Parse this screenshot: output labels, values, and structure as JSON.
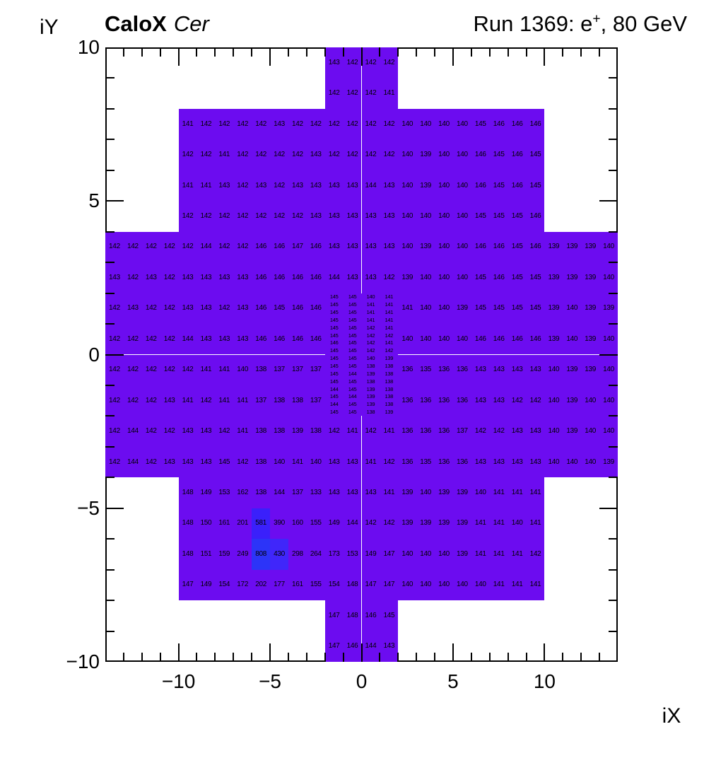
{
  "header": {
    "title_bold": "CaloX",
    "title_italic": "Cer",
    "run_pre": "Run 1369: e",
    "run_sup": "+",
    "run_post": ", 80 GeV"
  },
  "axes": {
    "x_title": "iX",
    "y_title": "iY",
    "x_ticks": [
      {
        "value": -10,
        "label": "−10"
      },
      {
        "value": -5,
        "label": "−5"
      },
      {
        "value": 0,
        "label": "0"
      },
      {
        "value": 5,
        "label": "5"
      },
      {
        "value": 10,
        "label": "10"
      }
    ],
    "y_ticks": [
      {
        "value": 10,
        "label": "10"
      },
      {
        "value": 5,
        "label": "5"
      },
      {
        "value": 0,
        "label": "0"
      },
      {
        "value": -5,
        "label": "−5"
      },
      {
        "value": -10,
        "label": "−10"
      }
    ]
  },
  "palette": {
    "base": "#6C0CF0",
    "stops": [
      {
        "min": 400,
        "color": "#4026FA"
      },
      {
        "min": 500,
        "color": "#3A20FB"
      },
      {
        "min": 700,
        "color": "#2C34F8"
      }
    ]
  },
  "chart_data": {
    "type": "heatmap",
    "xlabel": "iX",
    "ylabel": "iY",
    "xlim": [
      -14,
      14
    ],
    "ylim": [
      -10,
      10
    ],
    "grid": false,
    "rows": [
      {
        "iy": 9.5,
        "segments": [
          {
            "ix": -2,
            "values": [
              143,
              142,
              142,
              142
            ]
          }
        ]
      },
      {
        "iy": 8.5,
        "segments": [
          {
            "ix": -2,
            "values": [
              142,
              142,
              142,
              141
            ]
          }
        ]
      },
      {
        "iy": 7.5,
        "segments": [
          {
            "ix": -10,
            "values": [
              141,
              142,
              142,
              142,
              142,
              143,
              142,
              142,
              142,
              142,
              142,
              142,
              140,
              140,
              140,
              140,
              145,
              146,
              146,
              146
            ]
          }
        ]
      },
      {
        "iy": 6.5,
        "segments": [
          {
            "ix": -10,
            "values": [
              142,
              142,
              141,
              142,
              142,
              142,
              142,
              143,
              142,
              142,
              142,
              142,
              140,
              139,
              140,
              140,
              146,
              145,
              146,
              145
            ]
          }
        ]
      },
      {
        "iy": 5.5,
        "segments": [
          {
            "ix": -10,
            "values": [
              141,
              141,
              143,
              142,
              143,
              142,
              143,
              143,
              143,
              143,
              144,
              143,
              140,
              139,
              140,
              140,
              146,
              145,
              146,
              145
            ]
          }
        ]
      },
      {
        "iy": 4.5,
        "segments": [
          {
            "ix": -10,
            "values": [
              142,
              142,
              142,
              142,
              142,
              142,
              142,
              143,
              143,
              143,
              143,
              143,
              140,
              140,
              140,
              140,
              145,
              145,
              145,
              146
            ]
          }
        ]
      },
      {
        "iy": 3.5,
        "segments": [
          {
            "ix": -14,
            "values": [
              142,
              142,
              142,
              142,
              142,
              144,
              142,
              142,
              146,
              146,
              147,
              146,
              143,
              143,
              143,
              143,
              140,
              139,
              140,
              140,
              146,
              146,
              145,
              146,
              139,
              139,
              139,
              140
            ]
          }
        ]
      },
      {
        "iy": 2.5,
        "segments": [
          {
            "ix": -14,
            "values": [
              143,
              142,
              143,
              142,
              143,
              143,
              143,
              143,
              146,
              146,
              146,
              146,
              144,
              143,
              143,
              142,
              139,
              140,
              140,
              140,
              145,
              146,
              145,
              145,
              139,
              139,
              139,
              140
            ]
          }
        ]
      },
      {
        "iy": 1.5,
        "segments": [
          {
            "ix": -14,
            "values": [
              142,
              143,
              142,
              142,
              143,
              143,
              142,
              143,
              146,
              145,
              146,
              146
            ]
          },
          {
            "ix": 2,
            "values": [
              141,
              140,
              140,
              139,
              145,
              145,
              145,
              145,
              139,
              140,
              139,
              139
            ]
          }
        ]
      },
      {
        "iy": 0.5,
        "segments": [
          {
            "ix": -14,
            "values": [
              142,
              142,
              142,
              142,
              144,
              143,
              143,
              143,
              146,
              146,
              146,
              146
            ]
          },
          {
            "ix": 2,
            "values": [
              140,
              140,
              140,
              140,
              146,
              146,
              146,
              146,
              139,
              140,
              139,
              140
            ]
          }
        ]
      },
      {
        "iy": -0.5,
        "segments": [
          {
            "ix": -14,
            "values": [
              142,
              142,
              142,
              142,
              142,
              141,
              141,
              140,
              138,
              137,
              137,
              137
            ]
          },
          {
            "ix": 2,
            "values": [
              136,
              135,
              136,
              136,
              143,
              143,
              143,
              143,
              140,
              139,
              139,
              140
            ]
          }
        ]
      },
      {
        "iy": -1.5,
        "segments": [
          {
            "ix": -14,
            "values": [
              142,
              142,
              142,
              143,
              141,
              142,
              141,
              141,
              137,
              138,
              138,
              137
            ]
          },
          {
            "ix": 2,
            "values": [
              136,
              136,
              136,
              136,
              143,
              143,
              142,
              142,
              140,
              139,
              140,
              140
            ]
          }
        ]
      },
      {
        "iy": -2.5,
        "segments": [
          {
            "ix": -14,
            "values": [
              142,
              144,
              142,
              142,
              143,
              143,
              142,
              141,
              138,
              138,
              139,
              138,
              142,
              141,
              142,
              141,
              136,
              136,
              136,
              137,
              142,
              142,
              143,
              143,
              140,
              139,
              140,
              140
            ]
          }
        ]
      },
      {
        "iy": -3.5,
        "segments": [
          {
            "ix": -14,
            "values": [
              142,
              144,
              142,
              143,
              143,
              143,
              145,
              142,
              138,
              140,
              141,
              140,
              143,
              143,
              141,
              142,
              136,
              135,
              136,
              136,
              143,
              143,
              143,
              143,
              140,
              140,
              140,
              139
            ]
          }
        ]
      },
      {
        "iy": -4.5,
        "segments": [
          {
            "ix": -10,
            "values": [
              148,
              149,
              153,
              162,
              138,
              144,
              137,
              133,
              143,
              143,
              143,
              141,
              139,
              140,
              139,
              139,
              140,
              141,
              141,
              141
            ]
          }
        ]
      },
      {
        "iy": -5.5,
        "segments": [
          {
            "ix": -10,
            "values": [
              148,
              150,
              161,
              201,
              581,
              390,
              160,
              155,
              149,
              144,
              142,
              142,
              139,
              139,
              139,
              139,
              141,
              141,
              140,
              141
            ]
          }
        ]
      },
      {
        "iy": -6.5,
        "segments": [
          {
            "ix": -10,
            "values": [
              148,
              151,
              159,
              249,
              808,
              430,
              298,
              264,
              173,
              153,
              149,
              147,
              140,
              140,
              140,
              139,
              141,
              141,
              141,
              142
            ]
          }
        ]
      },
      {
        "iy": -7.5,
        "segments": [
          {
            "ix": -10,
            "values": [
              147,
              149,
              154,
              172,
              202,
              177,
              161,
              155,
              154,
              148,
              147,
              147,
              140,
              140,
              140,
              140,
              140,
              141,
              141,
              141
            ]
          }
        ]
      },
      {
        "iy": -8.5,
        "segments": [
          {
            "ix": -2,
            "values": [
              147,
              148,
              146,
              145
            ]
          }
        ]
      },
      {
        "iy": -9.5,
        "segments": [
          {
            "ix": -2,
            "values": [
              147,
              146,
              144,
              143
            ]
          }
        ]
      }
    ],
    "fine_region": {
      "x_start": -2,
      "cell_w": 1,
      "cell_h": 0.25,
      "rows": [
        {
          "iy": 1.875,
          "values": [
            145,
            145,
            140,
            141
          ]
        },
        {
          "iy": 1.625,
          "values": [
            145,
            145,
            141,
            141
          ]
        },
        {
          "iy": 1.375,
          "values": [
            145,
            145,
            141,
            141
          ]
        },
        {
          "iy": 1.125,
          "values": [
            145,
            145,
            141,
            141
          ]
        },
        {
          "iy": 0.875,
          "values": [
            145,
            145,
            142,
            141
          ]
        },
        {
          "iy": 0.625,
          "values": [
            145,
            145,
            142,
            142
          ]
        },
        {
          "iy": 0.375,
          "values": [
            146,
            145,
            142,
            141
          ]
        },
        {
          "iy": 0.125,
          "values": [
            145,
            145,
            142,
            142
          ]
        },
        {
          "iy": -0.125,
          "values": [
            145,
            145,
            140,
            139
          ]
        },
        {
          "iy": -0.375,
          "values": [
            145,
            145,
            138,
            138
          ]
        },
        {
          "iy": -0.625,
          "values": [
            145,
            144,
            139,
            138
          ]
        },
        {
          "iy": -0.875,
          "values": [
            145,
            145,
            138,
            138
          ]
        },
        {
          "iy": -1.125,
          "values": [
            144,
            145,
            139,
            138
          ]
        },
        {
          "iy": -1.375,
          "values": [
            145,
            144,
            139,
            138
          ]
        },
        {
          "iy": -1.625,
          "values": [
            144,
            145,
            139,
            138
          ]
        },
        {
          "iy": -1.875,
          "values": [
            145,
            145,
            138,
            139
          ]
        }
      ]
    }
  }
}
